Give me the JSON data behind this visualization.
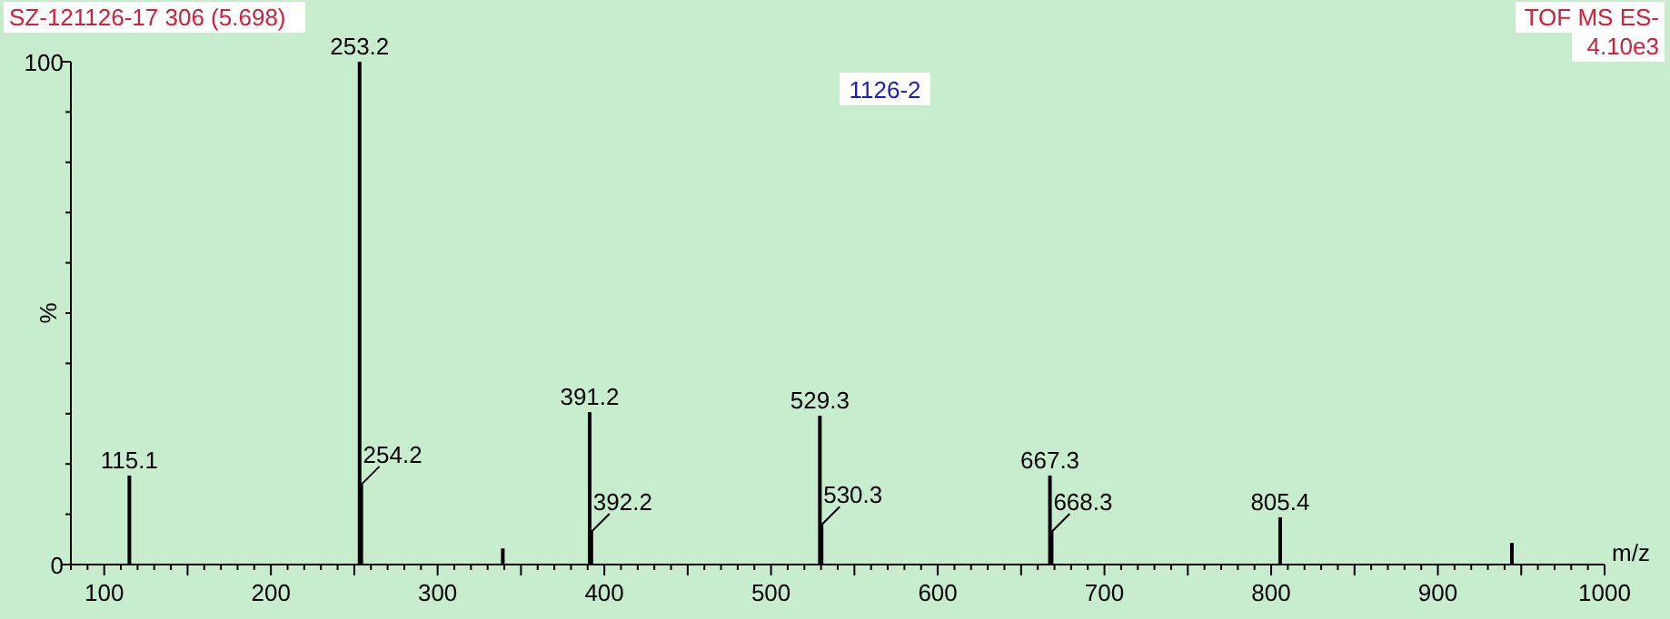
{
  "chart_data": {
    "type": "bar",
    "title": "SZ-121126-17 306 (5.698)",
    "xlabel": "m/z",
    "ylabel": "%",
    "x": [
      115.1,
      253.2,
      254.2,
      339.1,
      391.2,
      392.2,
      529.3,
      530.3,
      667.3,
      668.3,
      805.4,
      944.4
    ],
    "values": [
      17.7,
      100,
      15.9,
      3.2,
      30.3,
      6.5,
      29.6,
      7.9,
      17.7,
      6.5,
      9.4,
      4.3
    ],
    "color": "#000000",
    "xlim": [
      80,
      1000
    ],
    "xticks": [
      {
        "value": 80,
        "label": null
      },
      {
        "value": 90,
        "label": null
      },
      100,
      {
        "value": 110,
        "label": null
      },
      {
        "value": 120,
        "label": null
      },
      {
        "value": 130,
        "label": null
      },
      {
        "value": 140,
        "label": null
      },
      {
        "value": 150,
        "label": null
      },
      {
        "value": 160,
        "label": null
      },
      {
        "value": 170,
        "label": null
      },
      {
        "value": 180,
        "label": null
      },
      {
        "value": 190,
        "label": null
      },
      200,
      {
        "value": 210,
        "label": null
      },
      {
        "value": 220,
        "label": null
      },
      {
        "value": 230,
        "label": null
      },
      {
        "value": 240,
        "label": null
      },
      {
        "value": 250,
        "label": null
      },
      {
        "value": 260,
        "label": null
      },
      {
        "value": 270,
        "label": null
      },
      {
        "value": 280,
        "label": null
      },
      {
        "value": 290,
        "label": null
      },
      300,
      {
        "value": 310,
        "label": null
      },
      {
        "value": 320,
        "label": null
      },
      {
        "value": 330,
        "label": null
      },
      {
        "value": 340,
        "label": null
      },
      {
        "value": 350,
        "label": null
      },
      {
        "value": 360,
        "label": null
      },
      {
        "value": 370,
        "label": null
      },
      {
        "value": 380,
        "label": null
      },
      {
        "value": 390,
        "label": null
      },
      400,
      {
        "value": 410,
        "label": null
      },
      {
        "value": 420,
        "label": null
      },
      {
        "value": 430,
        "label": null
      },
      {
        "value": 440,
        "label": null
      },
      {
        "value": 450,
        "label": null
      },
      {
        "value": 460,
        "label": null
      },
      {
        "value": 470,
        "label": null
      },
      {
        "value": 480,
        "label": null
      },
      {
        "value": 490,
        "label": null
      },
      500,
      {
        "value": 510,
        "label": null
      },
      {
        "value": 520,
        "label": null
      },
      {
        "value": 530,
        "label": null
      },
      {
        "value": 540,
        "label": null
      },
      {
        "value": 550,
        "label": null
      },
      {
        "value": 560,
        "label": null
      },
      {
        "value": 570,
        "label": null
      },
      {
        "value": 580,
        "label": null
      },
      {
        "value": 590,
        "label": null
      },
      600,
      {
        "value": 610,
        "label": null
      },
      {
        "value": 620,
        "label": null
      },
      {
        "value": 630,
        "label": null
      },
      {
        "value": 640,
        "label": null
      },
      {
        "value": 650,
        "label": null
      },
      {
        "value": 660,
        "label": null
      },
      {
        "value": 670,
        "label": null
      },
      {
        "value": 680,
        "label": null
      },
      {
        "value": 690,
        "label": null
      },
      700,
      {
        "value": 710,
        "label": null
      },
      {
        "value": 720,
        "label": null
      },
      {
        "value": 730,
        "label": null
      },
      {
        "value": 740,
        "label": null
      },
      {
        "value": 750,
        "label": null
      },
      {
        "value": 760,
        "label": null
      },
      {
        "value": 770,
        "label": null
      },
      {
        "value": 780,
        "label": null
      },
      {
        "value": 790,
        "label": null
      },
      800,
      {
        "value": 810,
        "label": null
      },
      {
        "value": 820,
        "label": null
      },
      {
        "value": 830,
        "label": null
      },
      {
        "value": 840,
        "label": null
      },
      {
        "value": 850,
        "label": null
      },
      {
        "value": 860,
        "label": null
      },
      {
        "value": 870,
        "label": null
      },
      {
        "value": 880,
        "label": null
      },
      {
        "value": 890,
        "label": null
      },
      900,
      {
        "value": 910,
        "label": null
      },
      {
        "value": 920,
        "label": null
      },
      {
        "value": 930,
        "label": null
      },
      {
        "value": 940,
        "label": null
      },
      {
        "value": 950,
        "label": null
      },
      {
        "value": 960,
        "label": null
      },
      {
        "value": 970,
        "label": null
      },
      {
        "value": 980,
        "label": null
      },
      {
        "value": 990,
        "label": null
      },
      1000
    ],
    "ylim": [
      0,
      100
    ],
    "yticks": [
      0,
      {
        "value": 10,
        "label": null
      },
      {
        "value": 20,
        "label": null
      },
      {
        "value": 30,
        "label": null
      },
      {
        "value": 40,
        "label": null
      },
      {
        "value": 50,
        "label": null
      },
      {
        "value": 60,
        "label": null
      },
      {
        "value": 70,
        "label": null
      },
      {
        "value": 80,
        "label": null
      },
      {
        "value": 90,
        "label": null
      },
      100
    ],
    "annotations": [
      "TOF MS ES-",
      "4.10e3",
      "1126-2",
      {
        "text": "115.1",
        "x": 115.1,
        "y": 17.7
      },
      {
        "text": "253.2",
        "x": 253.2,
        "y": 100
      },
      {
        "text": "254.2",
        "x": 254.2,
        "y": 15.9
      },
      {
        "text": "391.2",
        "x": 391.2,
        "y": 30.3
      },
      {
        "text": "392.2",
        "x": 392.2,
        "y": 6.5
      },
      {
        "text": "529.3",
        "x": 529.3,
        "y": 29.6
      },
      {
        "text": "530.3",
        "x": 530.3,
        "y": 7.9
      },
      {
        "text": "667.3",
        "x": 667.3,
        "y": 17.7
      },
      {
        "text": "668.3",
        "x": 668.3,
        "y": 6.5
      },
      {
        "text": "805.4",
        "x": 805.4,
        "y": 9.4
      }
    ]
  }
}
